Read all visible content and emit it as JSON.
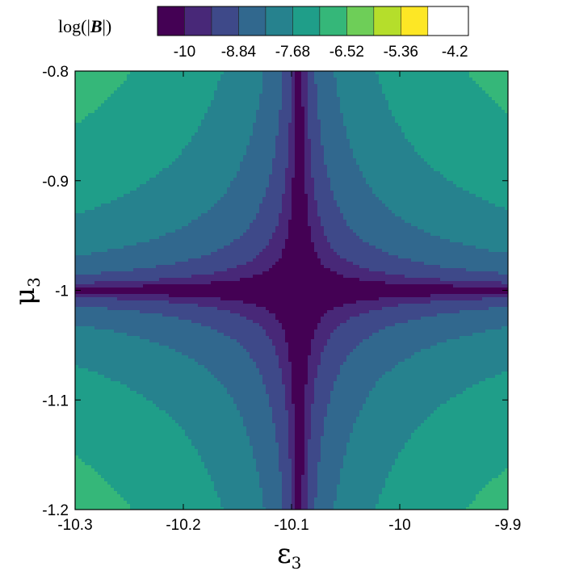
{
  "chart_data": {
    "type": "heatmap",
    "title": "",
    "xlabel": "ε",
    "xlabel_sub": "3",
    "ylabel": "μ",
    "ylabel_sub": "3",
    "xlim": [
      -10.3,
      -9.9
    ],
    "ylim": [
      -1.2,
      -0.8
    ],
    "x_ticks": [
      -10.3,
      -10.2,
      -10.1,
      -10,
      -9.9
    ],
    "x_tick_labels": [
      "-10.3",
      "-10.2",
      "-10.1",
      "-10",
      "-9.9"
    ],
    "y_ticks": [
      -0.8,
      -0.9,
      -1,
      -1.1,
      -1.2
    ],
    "y_tick_labels": [
      "-0.8",
      "-0.9",
      "-1",
      "-1.1",
      "-1.2"
    ],
    "center": {
      "x": -10.093,
      "y": -1.0
    },
    "field_description": "log(|B|) over (ε3, μ3), peaked along lines ε3≈-10.093 and μ3=-1",
    "contour_levels": [
      -10.58,
      -10.0,
      -9.42,
      -8.84,
      -8.26,
      -7.68,
      -7.1,
      -6.52,
      -5.94,
      -5.36,
      -4.78,
      -4.2,
      -3.62
    ],
    "colors": [
      "#440154",
      "#482878",
      "#3e4989",
      "#31688e",
      "#26828e",
      "#1f9e89",
      "#35b779",
      "#6ece58",
      "#b5de2b",
      "#fde725"
    ],
    "colorbar": {
      "label_prefix": "log(|",
      "label_symbol": "B",
      "label_suffix": "|)",
      "tick_values": [
        -10,
        -8.84,
        -7.68,
        -6.52,
        -5.36,
        -4.2
      ],
      "tick_labels": [
        "-10",
        "-8.84",
        "-7.68",
        "-6.52",
        "-5.36",
        "-4.2"
      ],
      "min": -10.58,
      "max": -3.91,
      "placement": "top"
    },
    "grid": false
  }
}
